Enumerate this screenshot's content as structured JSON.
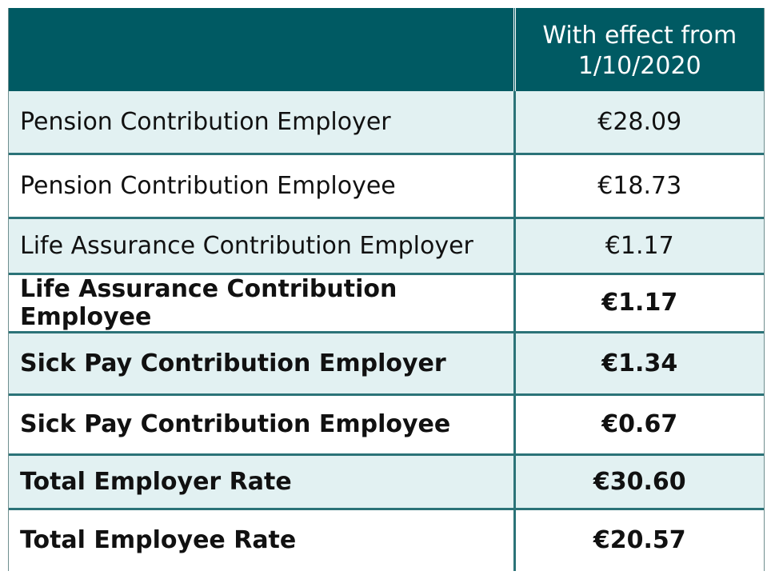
{
  "header": {
    "date_column_line1": "With effect from",
    "date_column_line2": "1/10/2020"
  },
  "rows": [
    {
      "label": "Pension Contribution Employer",
      "value": "€28.09"
    },
    {
      "label": "Pension Contribution Employee",
      "value": "€18.73"
    },
    {
      "label": "Life Assurance Contribution Employer",
      "value": "€1.17"
    },
    {
      "label": "Life Assurance Contribution Employee",
      "value": "€1.17"
    },
    {
      "label": "Sick Pay Contribution Employer",
      "value": "€1.34"
    },
    {
      "label": "Sick Pay Contribution Employee",
      "value": "€0.67"
    },
    {
      "label": "Total Employer Rate",
      "value": "€30.60"
    },
    {
      "label": "Total Employee Rate",
      "value": "€20.57"
    }
  ],
  "colors": {
    "header_bg": "#005a63",
    "shaded_row_bg": "#e2f1f2",
    "rule": "#2b7378"
  }
}
